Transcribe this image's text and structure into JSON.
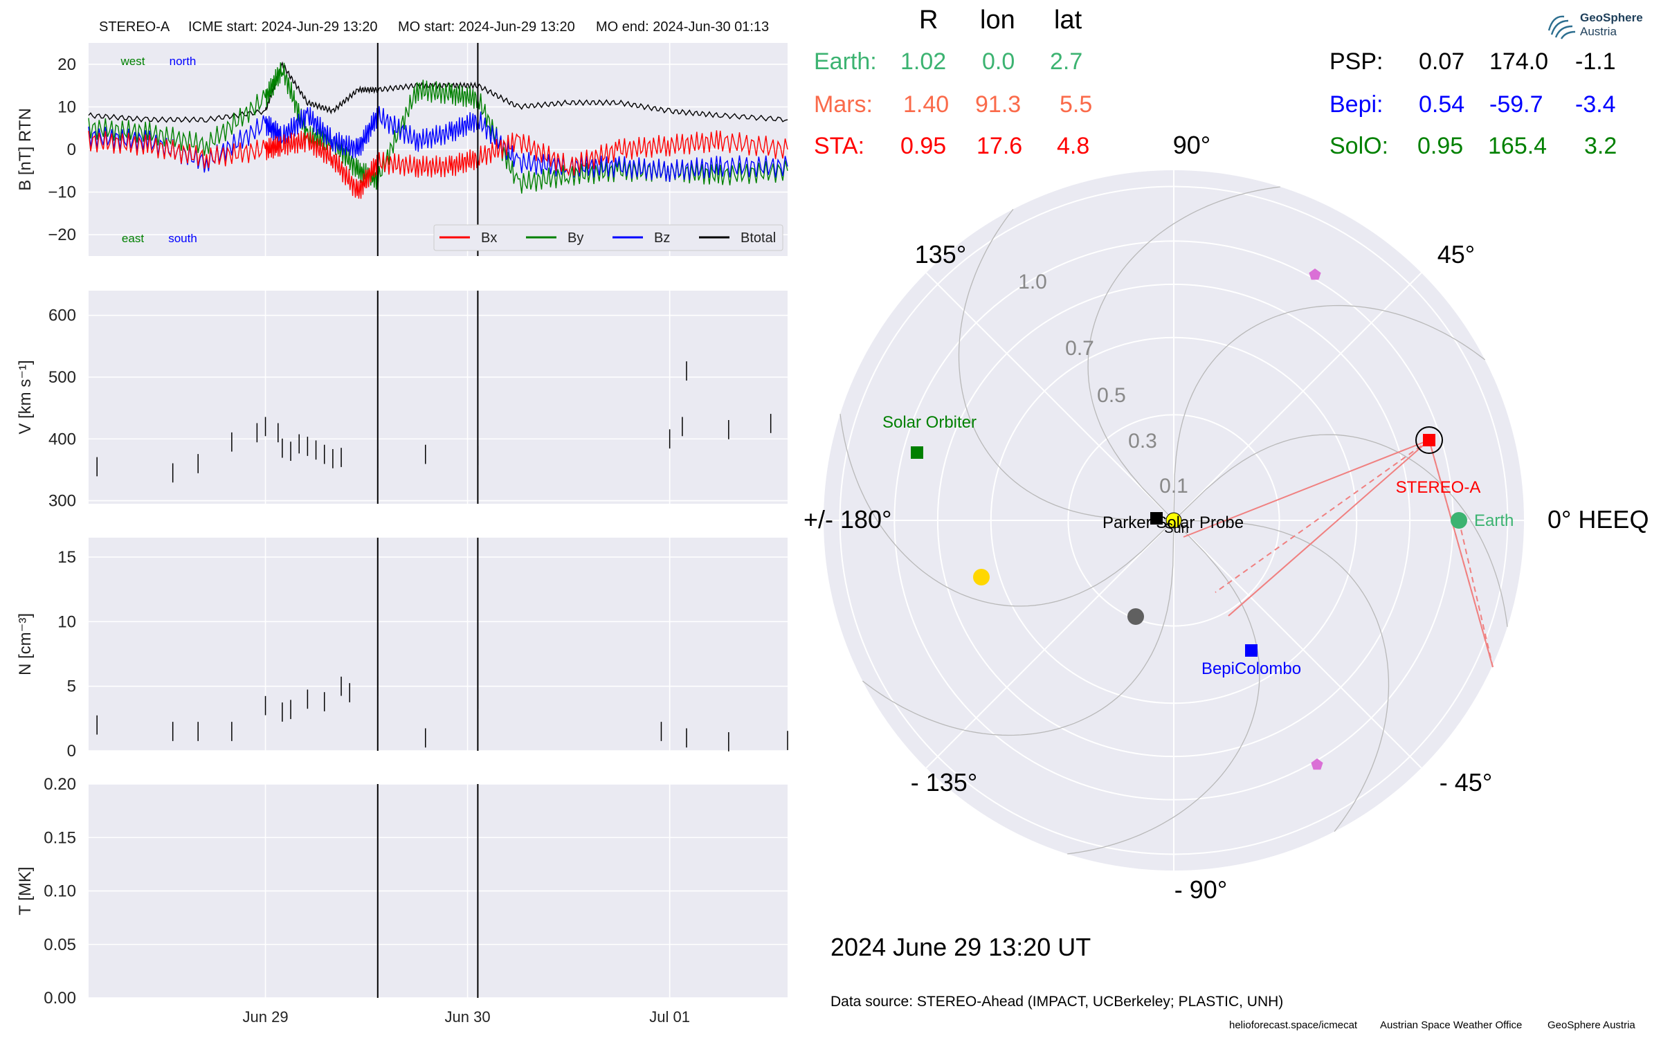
{
  "header": {
    "spacecraft": "STEREO-A",
    "icme_start": "ICME start: 2024-Jun-29 13:20",
    "mo_start": "MO start: 2024-Jun-29 13:20",
    "mo_end": "MO end: 2024-Jun-30 01:13"
  },
  "b_panel": {
    "ylabel": "B [nT] RTN",
    "annot_west": "west",
    "annot_north": "north",
    "annot_east": "east",
    "annot_south": "south",
    "legend": [
      "Bx",
      "By",
      "Bz",
      "Btotal"
    ]
  },
  "v_panel": {
    "ylabel": "V [km s⁻¹]"
  },
  "n_panel": {
    "ylabel": "N [cm⁻³]"
  },
  "t_panel": {
    "ylabel": "T [MK]"
  },
  "x_ticks": [
    "Jun 29",
    "Jun 30",
    "Jul 01"
  ],
  "position_table": {
    "col_headers": [
      "R",
      "lon",
      "lat"
    ],
    "rows_left": [
      {
        "name": "Earth:",
        "r": "1.02",
        "lon": "0.0",
        "lat": "2.7",
        "color": "#3cb371"
      },
      {
        "name": "Mars:",
        "r": "1.40",
        "lon": "91.3",
        "lat": "5.5",
        "color": "#fa6a4a"
      },
      {
        "name": "STA:",
        "r": "0.95",
        "lon": "17.6",
        "lat": "4.8",
        "color": "#ff0000"
      }
    ],
    "rows_right": [
      {
        "name": "PSP:",
        "r": "0.07",
        "lon": "174.0",
        "lat": "-1.1",
        "color": "#000000"
      },
      {
        "name": "Bepi:",
        "r": "0.54",
        "lon": "-59.7",
        "lat": "-3.4",
        "color": "#0000ff"
      },
      {
        "name": "SolO:",
        "r": "0.95",
        "lon": "165.4",
        "lat": "3.2",
        "color": "#008000"
      }
    ]
  },
  "polar": {
    "angle_labels": [
      "90°",
      "45°",
      "0° HEEQ",
      "- 45°",
      "- 90°",
      "- 135°",
      "+/- 180°",
      "135°"
    ],
    "radial_labels": [
      "0.1",
      "0.3",
      "0.5",
      "0.7",
      "1.0"
    ],
    "body_labels": {
      "solar_orbiter": "Solar Orbiter",
      "stereo_a": "STEREO-A",
      "earth": "Earth",
      "psp": "Parker Solar Probe",
      "sun": "Sun",
      "bepi": "BepiColombo"
    }
  },
  "datetime": "2024 June 29  13:20 UT",
  "data_source": "Data source: STEREO-Ahead (IMPACT, UCBerkeley; PLASTIC, UNH)",
  "footer": [
    "helioforecast.space/icmecat",
    "Austrian Space Weather Office",
    "GeoSphere Austria"
  ],
  "logo": {
    "title": "GeoSphere",
    "subtitle": "Austria"
  },
  "chart_data": [
    {
      "type": "line",
      "title": "STEREO-A   ICME start: 2024-Jun-29 13:20   MO start: 2024-Jun-29 13:20   MO end: 2024-Jun-30 01:13",
      "ylabel": "B [nT] RTN",
      "ylim": [
        -25,
        25
      ],
      "xlim": [
        "2024-06-28 03:00",
        "2024-07-01 14:00"
      ],
      "x": [
        "2024-06-28 03:00",
        "2024-06-28 10:00",
        "2024-06-28 17:00",
        "2024-06-29 00:00",
        "2024-06-29 02:00",
        "2024-06-29 05:00",
        "2024-06-29 08:00",
        "2024-06-29 11:00",
        "2024-06-29 13:20",
        "2024-06-29 18:00",
        "2024-06-29 22:00",
        "2024-06-30 01:13",
        "2024-06-30 06:00",
        "2024-06-30 12:00",
        "2024-06-30 18:00",
        "2024-07-01 00:00",
        "2024-07-01 06:00",
        "2024-07-01 14:00"
      ],
      "series": [
        {
          "name": "Bx",
          "color": "#ff0000",
          "values": [
            2,
            1,
            -2,
            0,
            1,
            2,
            -2,
            -10,
            -3,
            -4,
            -4,
            -2,
            2,
            -4,
            0,
            1,
            2,
            0
          ]
        },
        {
          "name": "By",
          "color": "#008000",
          "values": [
            5,
            4,
            1,
            12,
            19,
            3,
            2,
            -5,
            -7,
            14,
            13,
            12,
            -8,
            -6,
            -5,
            -5,
            -6,
            -5
          ]
        },
        {
          "name": "Bz",
          "color": "#0000ff",
          "values": [
            3,
            2,
            -3,
            6,
            3,
            8,
            2,
            0,
            8,
            2,
            4,
            7,
            -3,
            -4,
            -4,
            -5,
            -4,
            -4
          ]
        },
        {
          "name": "Btotal",
          "color": "#000000",
          "values": [
            8,
            7,
            7,
            9,
            20,
            11,
            9,
            14,
            14,
            15,
            15,
            15,
            10,
            11,
            11,
            9,
            8,
            7
          ]
        }
      ],
      "vlines": [
        "2024-06-29 13:20",
        "2024-06-30 01:13"
      ],
      "annotations": [
        "west",
        "north",
        "east",
        "south"
      ],
      "legend": "bottom-right",
      "grid": true
    },
    {
      "type": "line",
      "ylabel": "V [km s⁻¹]",
      "ylim": [
        295,
        640
      ],
      "x": [
        "2024-06-28 04:00",
        "2024-06-28 13:00",
        "2024-06-28 16:00",
        "2024-06-28 20:00",
        "2024-06-28 23:00",
        "2024-06-29 00:00",
        "2024-06-29 01:30",
        "2024-06-29 02:00",
        "2024-06-29 03:00",
        "2024-06-29 04:00",
        "2024-06-29 05:00",
        "2024-06-29 06:00",
        "2024-06-29 07:00",
        "2024-06-29 08:00",
        "2024-06-29 09:00",
        "2024-06-29 13:20",
        "2024-06-29 19:00",
        "2024-06-30 01:13",
        "2024-07-01 00:00",
        "2024-07-01 01:30",
        "2024-07-01 02:00",
        "2024-07-01 07:00",
        "2024-07-01 12:00"
      ],
      "values": [
        355,
        345,
        360,
        395,
        410,
        420,
        410,
        385,
        380,
        392,
        388,
        382,
        375,
        368,
        370,
        368,
        375,
        373,
        400,
        420,
        510,
        415,
        425
      ],
      "vlines": [
        "2024-06-29 13:20",
        "2024-06-30 01:13"
      ],
      "grid": true
    },
    {
      "type": "line",
      "ylabel": "N [cm⁻³]",
      "ylim": [
        0,
        16.5
      ],
      "x": [
        "2024-06-28 04:00",
        "2024-06-28 13:00",
        "2024-06-28 16:00",
        "2024-06-28 20:00",
        "2024-06-29 00:00",
        "2024-06-29 02:00",
        "2024-06-29 03:00",
        "2024-06-29 05:00",
        "2024-06-29 07:00",
        "2024-06-29 09:00",
        "2024-06-29 10:00",
        "2024-06-29 13:20",
        "2024-06-29 19:00",
        "2024-06-30 01:13",
        "2024-06-30 23:00",
        "2024-07-01 02:00",
        "2024-07-01 07:00",
        "2024-07-01 14:00"
      ],
      "values": [
        2,
        1.5,
        1.5,
        1.5,
        3.5,
        3,
        3.2,
        4,
        3.8,
        5,
        4.5,
        5,
        1,
        4,
        1.5,
        1,
        0.7,
        0.8
      ],
      "vlines": [
        "2024-06-29 13:20",
        "2024-06-30 01:13"
      ],
      "grid": true
    },
    {
      "type": "line",
      "ylabel": "T [MK]",
      "ylim": [
        0,
        0.2
      ],
      "x": [],
      "values": [],
      "vlines": [
        "2024-06-29 13:20",
        "2024-06-30 01:13"
      ],
      "grid": true
    },
    {
      "type": "scatter",
      "title": "2024 June 29  13:20 UT",
      "projection": "polar",
      "angle_labels": [
        "90°",
        "45°",
        "0° HEEQ",
        "- 45°",
        "- 90°",
        "- 135°",
        "+/- 180°",
        "135°"
      ],
      "radial_ticks": [
        0.1,
        0.3,
        0.5,
        0.7,
        1.0
      ],
      "points": [
        {
          "name": "Earth",
          "r": 1.02,
          "lon": 0.0,
          "color": "#3cb371",
          "marker": "circle"
        },
        {
          "name": "STEREO-A",
          "r": 0.95,
          "lon": 17.6,
          "color": "#ff0000",
          "marker": "square"
        },
        {
          "name": "Solar Orbiter",
          "r": 0.95,
          "lon": 165.4,
          "color": "#008000",
          "marker": "square"
        },
        {
          "name": "BepiColombo",
          "r": 0.54,
          "lon": -59.7,
          "color": "#0000ff",
          "marker": "square"
        },
        {
          "name": "Parker Solar Probe",
          "r": 0.07,
          "lon": 174.0,
          "color": "#000000",
          "marker": "square"
        },
        {
          "name": "Sun",
          "r": 0.0,
          "lon": 0.0,
          "color": "#ffff00",
          "marker": "circle"
        }
      ]
    }
  ]
}
